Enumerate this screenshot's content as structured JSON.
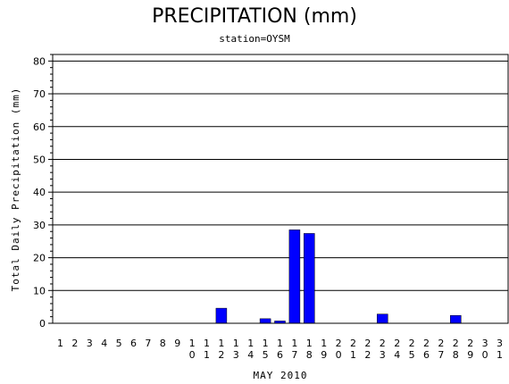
{
  "chart_data": {
    "type": "bar",
    "title": "PRECIPITATION (mm)",
    "subtitle": "station=OYSM",
    "xlabel": "MAY 2010",
    "ylabel": "Total Daily Precipitation (mm)",
    "ylim": [
      0,
      82
    ],
    "yticks": [
      0,
      10,
      20,
      30,
      40,
      50,
      60,
      70,
      80
    ],
    "grid": true,
    "bar_color": "#0000ff",
    "categories": [
      "1",
      "2",
      "3",
      "4",
      "5",
      "6",
      "7",
      "8",
      "9",
      "10",
      "11",
      "12",
      "13",
      "14",
      "15",
      "16",
      "17",
      "18",
      "19",
      "20",
      "21",
      "22",
      "23",
      "24",
      "25",
      "26",
      "27",
      "28",
      "29",
      "30",
      "31"
    ],
    "values": [
      0,
      0,
      0,
      0,
      0,
      0,
      0,
      0,
      0,
      0,
      0,
      4.6,
      0,
      0,
      1.4,
      0.7,
      28.5,
      27.4,
      0,
      0,
      0,
      0,
      2.8,
      0,
      0,
      0,
      0,
      2.4,
      0,
      0,
      0
    ]
  }
}
